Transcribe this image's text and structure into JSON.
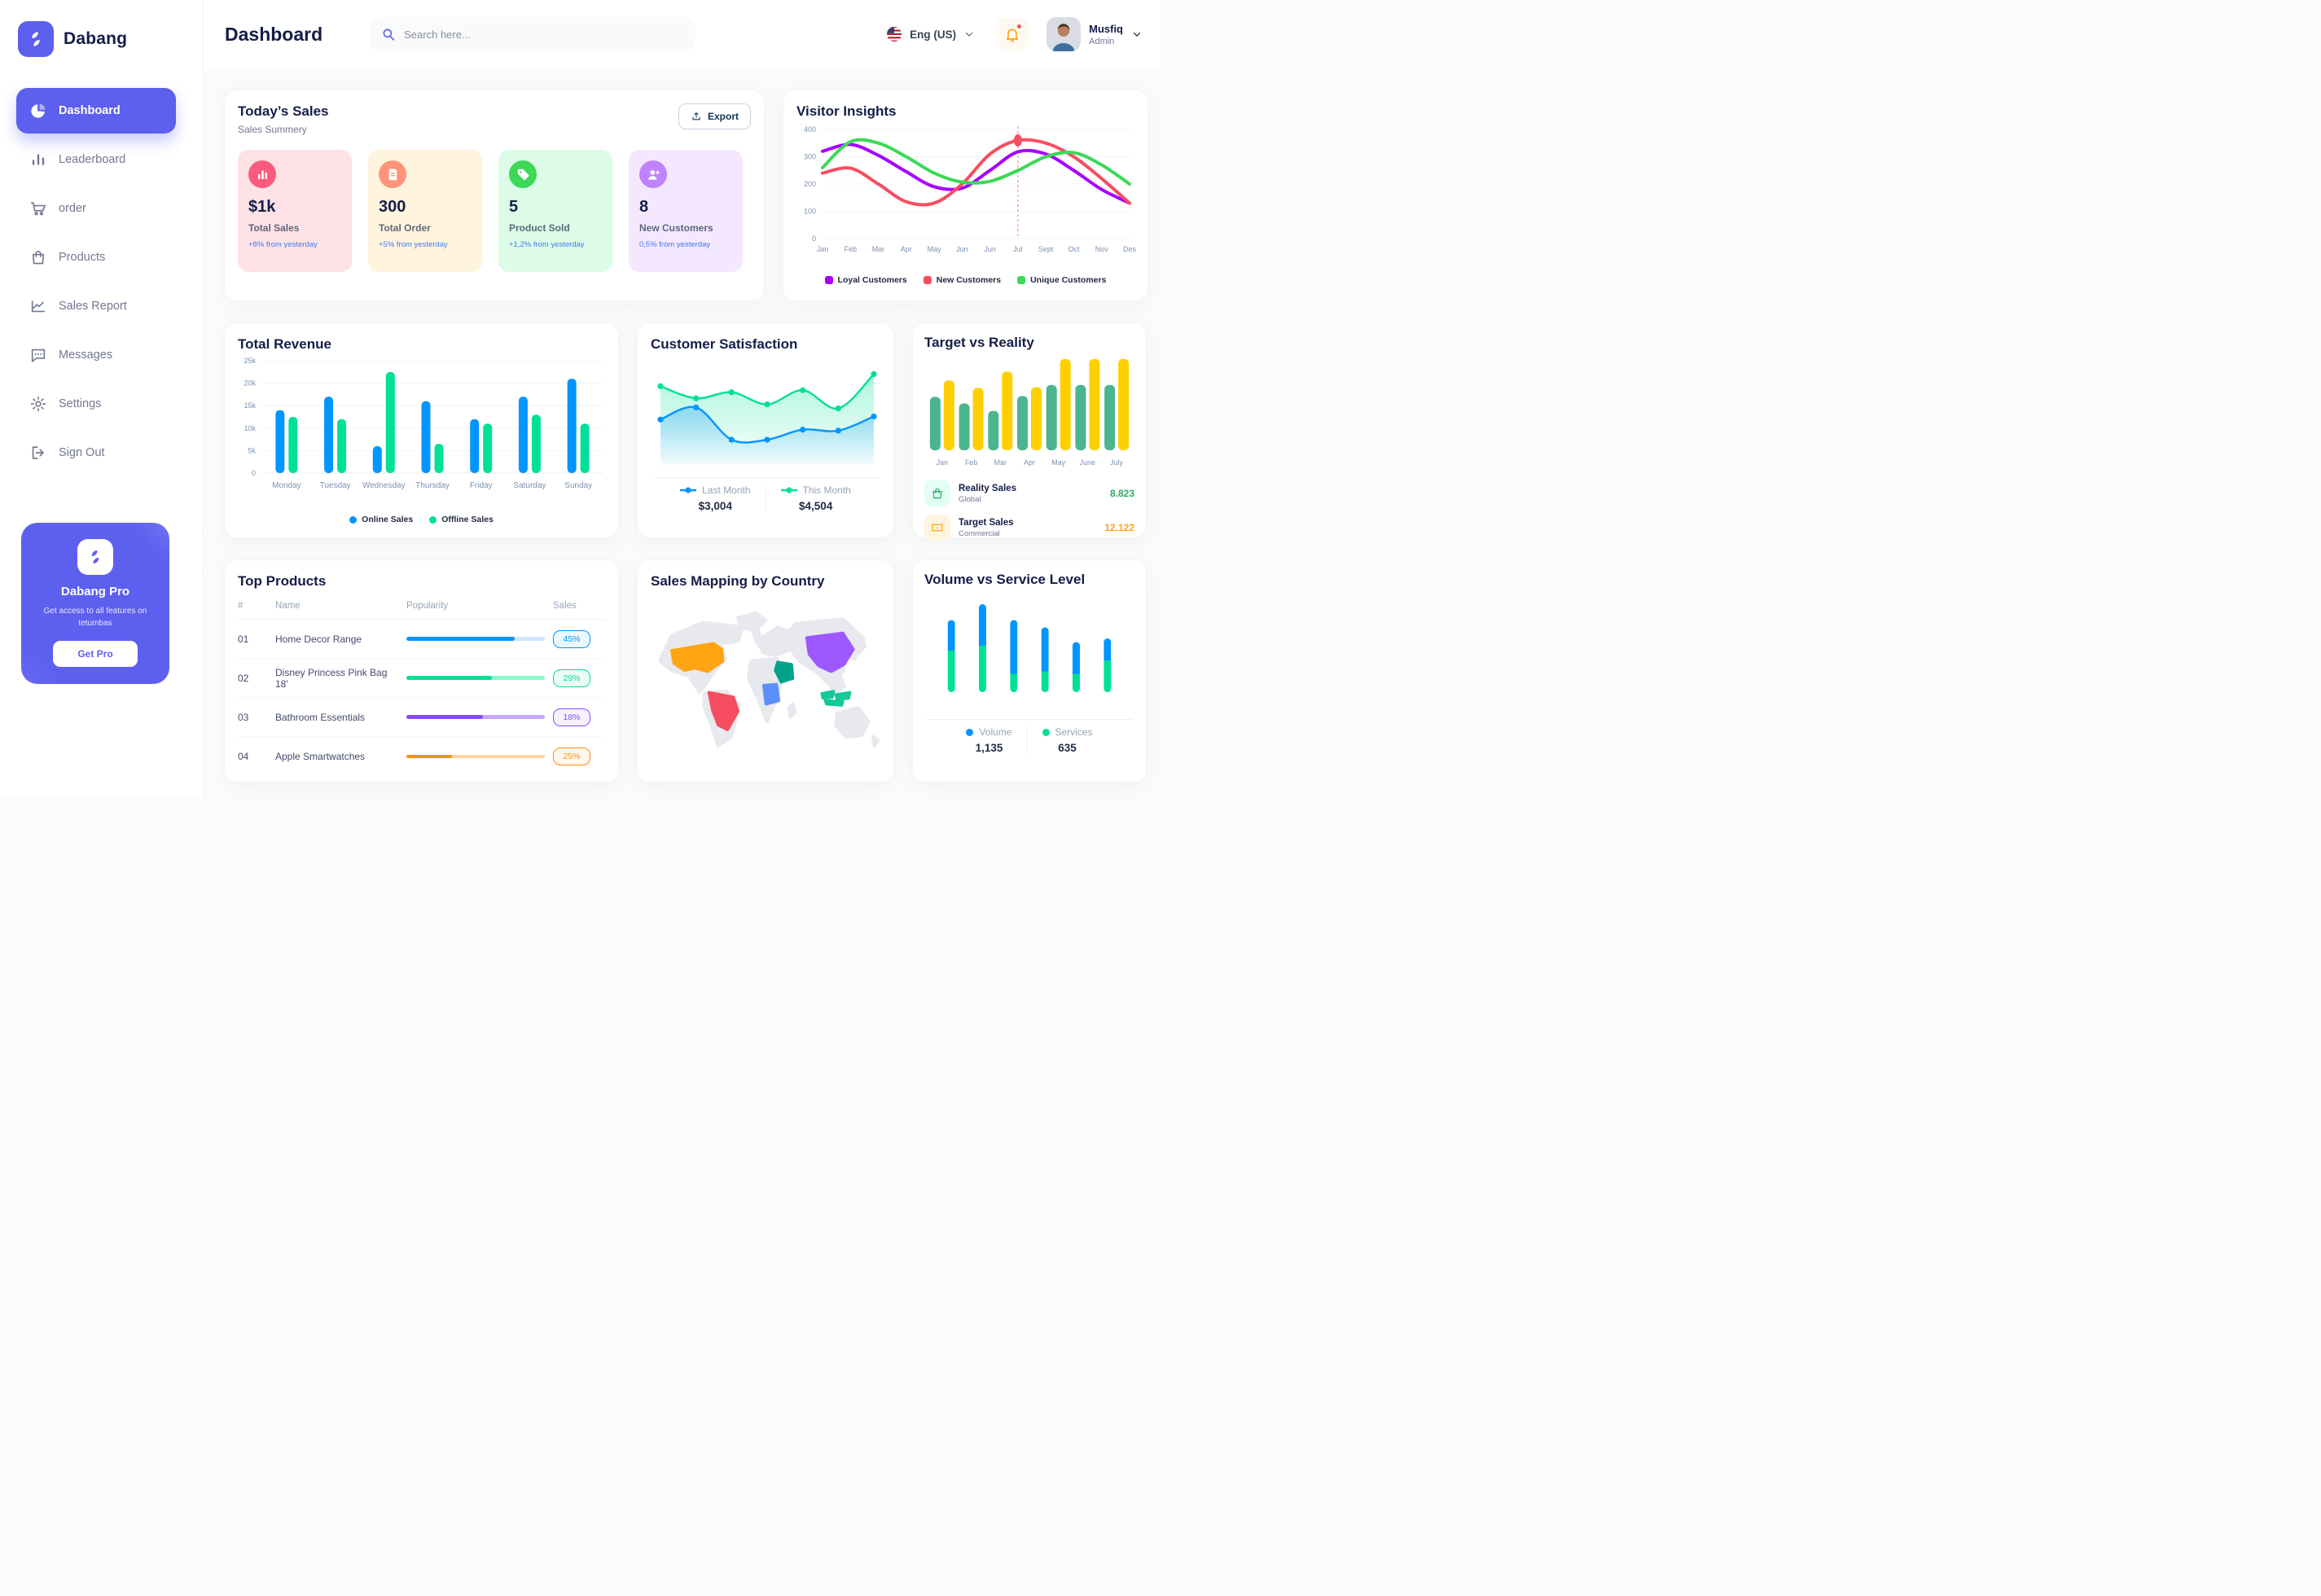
{
  "app": {
    "brand": "Dabang"
  },
  "header": {
    "title": "Dashboard",
    "search_placeholder": "Search here...",
    "language": "Eng (US)",
    "user_name": "Musfiq",
    "user_role": "Admin"
  },
  "sidebar": {
    "items": [
      {
        "id": "dashboard",
        "label": "Dashboard",
        "icon": "pie-chart",
        "active": true
      },
      {
        "id": "leaderboard",
        "label": "Leaderboard",
        "icon": "bar-chart",
        "active": false
      },
      {
        "id": "order",
        "label": "order",
        "icon": "cart",
        "active": false
      },
      {
        "id": "products",
        "label": "Products",
        "icon": "bag",
        "active": false
      },
      {
        "id": "sales-report",
        "label": "Sales Report",
        "icon": "line-chart",
        "active": false
      },
      {
        "id": "messages",
        "label": "Messages",
        "icon": "message",
        "active": false
      },
      {
        "id": "settings",
        "label": "Settings",
        "icon": "gear",
        "active": false
      },
      {
        "id": "sign-out",
        "label": "Sign Out",
        "icon": "sign-out",
        "active": false
      }
    ],
    "promo": {
      "title": "Dabang Pro",
      "subtitle": "Get access to all features on tetumbas",
      "cta": "Get Pro"
    }
  },
  "today_sales": {
    "title": "Today’s Sales",
    "subtitle": "Sales Summery",
    "export_label": "Export",
    "cards": [
      {
        "value": "$1k",
        "label": "Total Sales",
        "delta": "+8% from yesterday",
        "bg": "#FFE2E5",
        "icon_bg": "#FA5A7D",
        "icon": "chart-bars"
      },
      {
        "value": "300",
        "label": "Total Order",
        "delta": "+5% from yesterday",
        "bg": "#FFF4DE",
        "icon_bg": "#FF947A",
        "icon": "receipt"
      },
      {
        "value": "5",
        "label": "Product Sold",
        "delta": "+1,2% from yesterday",
        "bg": "#DCFCE7",
        "icon_bg": "#3CD856",
        "icon": "tag"
      },
      {
        "value": "8",
        "label": "New Customers",
        "delta": "0,5% from yesterday",
        "bg": "#F3E8FF",
        "icon_bg": "#BF83FF",
        "icon": "user-plus"
      }
    ]
  },
  "chart_data": {
    "visitor_insights": {
      "type": "line",
      "title": "Visitor Insights",
      "x": [
        "Jan",
        "Feb",
        "Mar",
        "Apr",
        "May",
        "Jun",
        "Jun",
        "Jul",
        "Sept",
        "Oct",
        "Nov",
        "Des"
      ],
      "ylim": [
        0,
        400
      ],
      "yticks": [
        0,
        100,
        200,
        300,
        400
      ],
      "series": [
        {
          "name": "Loyal Customers",
          "color": "#A700FF",
          "values": [
            320,
            345,
            305,
            245,
            190,
            185,
            250,
            318,
            310,
            250,
            180,
            130
          ]
        },
        {
          "name": "New Customers",
          "color": "#F64E60",
          "values": [
            240,
            258,
            200,
            135,
            130,
            200,
            310,
            360,
            350,
            300,
            220,
            130
          ]
        },
        {
          "name": "Unique Customers",
          "color": "#3CD856",
          "values": [
            260,
            355,
            350,
            300,
            240,
            207,
            210,
            250,
            300,
            315,
            270,
            200
          ]
        }
      ],
      "marker": {
        "series": "New Customers",
        "x_index": 7,
        "value": 360
      }
    },
    "total_revenue": {
      "type": "bar",
      "title": "Total Revenue",
      "categories": [
        "Monday",
        "Tuesday",
        "Wednesday",
        "Thursday",
        "Friday",
        "Saturday",
        "Sunday"
      ],
      "ytick_labels": [
        "0",
        "5k",
        "10k",
        "15k",
        "20k",
        "25k"
      ],
      "ymax": 25,
      "series": [
        {
          "name": "Online Sales",
          "color": "#0095FF",
          "values": [
            14,
            17,
            6,
            16,
            12,
            17,
            21
          ]
        },
        {
          "name": "Offline Sales",
          "color": "#00E096",
          "values": [
            12.5,
            12,
            22.5,
            6.5,
            11,
            13,
            11
          ]
        }
      ]
    },
    "customer_satisfaction": {
      "type": "area",
      "title": "Customer Satisfaction",
      "series": [
        {
          "name": "Last Month",
          "color": "#0095FF",
          "total": "$3,004",
          "values": [
            45,
            57,
            25,
            25,
            35,
            34,
            48
          ]
        },
        {
          "name": "This Month",
          "color": "#00E096",
          "total": "$4,504",
          "values": [
            78,
            66,
            72,
            60,
            74,
            56,
            90
          ]
        }
      ]
    },
    "target_vs_reality": {
      "type": "bar",
      "title": "Target vs Reality",
      "categories": [
        "Jan",
        "Feb",
        "Mar",
        "Apr",
        "May",
        "June",
        "July"
      ],
      "ymax": 12.5,
      "series": [
        {
          "name": "Reality Sales",
          "subtitle": "Global",
          "color": "#4AB58E",
          "icon": "bag-line",
          "icon_bg": "#E2FFF3",
          "total": "8.823",
          "total_color": "#27AE60",
          "values": [
            7.2,
            6.3,
            5.3,
            7.3,
            8.8,
            8.8,
            8.8
          ]
        },
        {
          "name": "Target Sales",
          "subtitle": "Commercial",
          "color": "#FFCF00",
          "icon": "ticket",
          "icon_bg": "#FFF4DE",
          "total": "12.122",
          "total_color": "#FFA412",
          "values": [
            9.4,
            8.4,
            10.6,
            8.5,
            12.3,
            12.3,
            12.3
          ]
        }
      ]
    },
    "volume_vs_service": {
      "type": "stacked-bar",
      "title": "Volume vs Service Level",
      "series": [
        {
          "name": "Volume",
          "color": "#0095FF",
          "total": "1,135",
          "values": [
            25,
            34,
            44,
            36,
            26,
            18
          ]
        },
        {
          "name": "Services",
          "color": "#00E096",
          "total": "635",
          "values": [
            34,
            38,
            15,
            17,
            15,
            26
          ]
        }
      ]
    }
  },
  "top_products": {
    "title": "Top Products",
    "headers": [
      "#",
      "Name",
      "Popularity",
      "Sales"
    ],
    "rows": [
      {
        "num": "01",
        "name": "Home Decor Range",
        "fill": 78,
        "color": "#0095FF",
        "track": "#CDE7FF",
        "sales": "45%"
      },
      {
        "num": "02",
        "name": "Disney Princess Pink Bag 18'",
        "fill": 62,
        "color": "#00E096",
        "track": "#8CFAC7",
        "sales": "29%"
      },
      {
        "num": "03",
        "name": "Bathroom Essentials",
        "fill": 55,
        "color": "#884DFF",
        "track": "#C5A8FF",
        "sales": "18%"
      },
      {
        "num": "04",
        "name": "Apple Smartwatches",
        "fill": 33,
        "color": "#FF8F0D",
        "track": "#FFD5A4",
        "sales": "25%"
      }
    ]
  },
  "sales_map": {
    "title": "Sales Mapping by Country",
    "countries": [
      {
        "key": "us",
        "name": "United States",
        "color": "#FFA412"
      },
      {
        "key": "brazil",
        "name": "Brazil",
        "color": "#F64E60"
      },
      {
        "key": "china",
        "name": "China",
        "color": "#9E58FF"
      },
      {
        "key": "saudi",
        "name": "Saudi Arabia",
        "color": "#00A389"
      },
      {
        "key": "drc",
        "name": "DR Congo",
        "color": "#5B8FF9"
      },
      {
        "key": "indonesia",
        "name": "Indonesia",
        "color": "#16C79A"
      }
    ]
  }
}
